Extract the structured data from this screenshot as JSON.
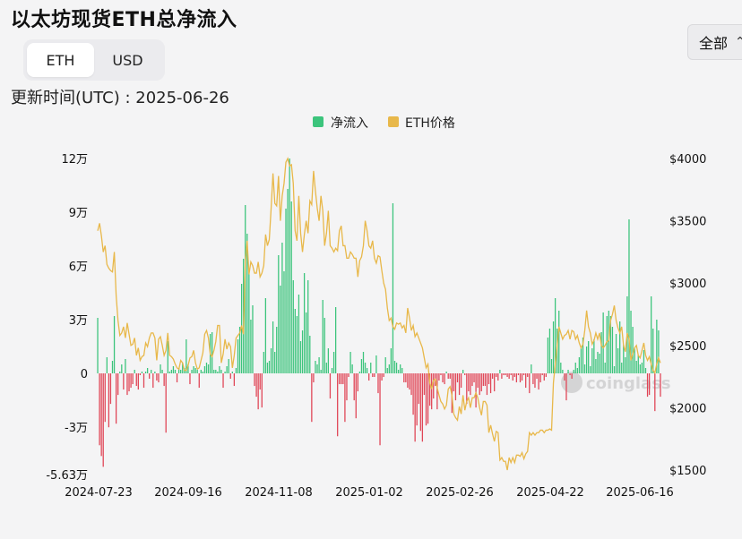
{
  "title": "以太坊现货ETH总净流入",
  "range_select": {
    "label": "全部",
    "icon": "chevron-updown-icon"
  },
  "unit_toggle": {
    "options": [
      "ETH",
      "USD"
    ],
    "selected": "ETH"
  },
  "updated_text": "更新时间(UTC) : 2025-06-26",
  "watermark": "coinglass",
  "colors": {
    "inflow": "#3cc47c",
    "outflow": "#e04556",
    "price": "#e8b84a"
  },
  "chart_data": {
    "type": "bar",
    "legend": [
      {
        "name": "净流入",
        "color": "#3cc47c"
      },
      {
        "name": "ETH价格",
        "color": "#e8b84a"
      }
    ],
    "legend_position": "top-center",
    "y_left": {
      "ticks": [
        120000,
        90000,
        60000,
        30000,
        0,
        -30000,
        -56300
      ],
      "tick_labels": [
        "12万",
        "9万",
        "6万",
        "3万",
        "0",
        "-3万",
        "-5.63万"
      ],
      "range": [
        -56300,
        120000
      ]
    },
    "y_right": {
      "ticks": [
        4000,
        3500,
        3000,
        2500,
        2000,
        1500
      ],
      "tick_labels": [
        "$4000",
        "$3500",
        "$3000",
        "$2500",
        "$2000",
        "$1500"
      ],
      "range": [
        1450,
        4000
      ]
    },
    "x_tick_labels": [
      "2024-07-23",
      "2024-09-16",
      "2024-11-08",
      "2025-01-02",
      "2025-02-26",
      "2025-04-22",
      "2025-06-16"
    ],
    "series": [
      {
        "name": "净流入",
        "unit": "ETH",
        "values": [
          31000,
          -40000,
          -46000,
          -52000,
          -27000,
          9000,
          -30000,
          -17000,
          7000,
          32000,
          -28000,
          -12000,
          1000,
          5000,
          -9000,
          8000,
          -12000,
          -10000,
          -8000,
          -6000,
          2000,
          -7000,
          -9000,
          -1000,
          1000,
          -8000,
          1000,
          3000,
          -3000,
          2000,
          -8000,
          1000,
          -4000,
          -5000,
          5000,
          2000,
          -7000,
          -33000,
          18000,
          1000,
          2000,
          4000,
          2000,
          -5000,
          3000,
          2000,
          6000,
          3000,
          19000,
          5000,
          -6000,
          2000,
          4000,
          3000,
          2000,
          -8000,
          2000,
          1000,
          4000,
          6000,
          5000,
          22000,
          23000,
          2000,
          2000,
          1000,
          4000,
          2000,
          -8000,
          1000,
          4000,
          8000,
          -3000,
          1000,
          -7000,
          3000,
          19000,
          26000,
          50000,
          64000,
          94000,
          78000,
          58000,
          30000,
          38000,
          -7000,
          -13000,
          -20000,
          -9000,
          -19000,
          12000,
          42000,
          6000,
          7000,
          14000,
          29000,
          12000,
          26000,
          66000,
          49000,
          73000,
          57000,
          92000,
          103000,
          120000,
          96000,
          52000,
          36000,
          32000,
          44000,
          18000,
          24000,
          56000,
          34000,
          52000,
          21000,
          -27000,
          -5000,
          7000,
          5000,
          9000,
          2000,
          41000,
          31000,
          6000,
          14000,
          -14000,
          3000,
          12000,
          37000,
          -35000,
          -6000,
          -6000,
          -6000,
          -27000,
          -15000,
          -2000,
          12000,
          5000,
          -15000,
          -25000,
          -10000,
          1000,
          8000,
          12000,
          6000,
          3000,
          -4000,
          6000,
          -2000,
          -2000,
          10000,
          -11000,
          -40000,
          -4000,
          -2000,
          9000,
          3000,
          5000,
          14000,
          95000,
          7000,
          6000,
          2000,
          5000,
          3000,
          -5000,
          -5000,
          -8000,
          -9000,
          -12000,
          -23000,
          -38000,
          -29000,
          -17000,
          -32000,
          -38000,
          -12000,
          -29000,
          -28000,
          -18000,
          -20000,
          -14000,
          -7000,
          -20000,
          -4000,
          -1000,
          -5000,
          -6000,
          1000,
          -3000,
          -3000,
          -22000,
          -10000,
          -15000,
          -5000,
          -12000,
          -8000,
          2000,
          -1000,
          -17000,
          -10000,
          -12000,
          -7000,
          -5000,
          -19000,
          -8000,
          -12000,
          -10000,
          -7000,
          -7000,
          -12000,
          -6000,
          -11000,
          -3000,
          -10000,
          -2000,
          -4000,
          2000,
          -3000,
          -1000,
          -1000,
          -2000,
          -3000,
          -1000,
          -4000,
          -2000,
          -5000,
          -1000,
          -5000,
          -4000,
          -1000,
          -8000,
          -2000,
          -11000,
          5000,
          -6000,
          -8000,
          -3000,
          -9000,
          -5000,
          -1000,
          -4000,
          -2000,
          20000,
          25000,
          8000,
          29000,
          42000,
          25000,
          35000,
          6000,
          2000,
          -4000,
          -15000,
          2000,
          -1000,
          -3000,
          2000,
          6000,
          3000,
          9000,
          14000,
          20000,
          5000,
          15000,
          18000,
          4000,
          14000,
          19000,
          8000,
          12000,
          11000,
          23000,
          34000,
          6000,
          32000,
          35000,
          32000,
          26000,
          4000,
          22000,
          14000,
          29000,
          6000,
          16000,
          9000,
          43000,
          86000,
          35000,
          26000,
          14000,
          7000,
          10000,
          5000,
          6000,
          13000,
          3000,
          -13000,
          -12000,
          43000,
          25000,
          -21000,
          30000,
          24000,
          -13000
        ]
      },
      {
        "name": "ETH价格",
        "unit": "USD",
        "values": [
          3420,
          3480,
          3380,
          3250,
          3300,
          3150,
          3120,
          3100,
          3090,
          3250,
          2900,
          2700,
          2580,
          2600,
          2650,
          2560,
          2680,
          2590,
          2500,
          2510,
          2560,
          2420,
          2480,
          2380,
          2410,
          2420,
          2520,
          2490,
          2560,
          2600,
          2600,
          2560,
          2380,
          2550,
          2570,
          2500,
          2420,
          2460,
          2600,
          2420,
          2410,
          2390,
          2350,
          2320,
          2310,
          2380,
          2360,
          2300,
          2300,
          2340,
          2400,
          2410,
          2460,
          2360,
          2310,
          2320,
          2380,
          2440,
          2590,
          2620,
          2560,
          2430,
          2410,
          2460,
          2530,
          2660,
          2660,
          2360,
          2430,
          2550,
          2470,
          2520,
          2490,
          2320,
          2420,
          2560,
          2580,
          2600,
          2660,
          2590,
          3170,
          3340,
          3070,
          3170,
          3140,
          3080,
          3080,
          3170,
          3050,
          3080,
          3140,
          3390,
          3300,
          3350,
          3600,
          3880,
          3640,
          3620,
          3860,
          3500,
          3700,
          3800,
          3970,
          4000,
          3940,
          3950,
          3800,
          3420,
          3340,
          3700,
          3400,
          3250,
          3390,
          3500,
          3400,
          3660,
          3630,
          3900,
          3740,
          3600,
          3500,
          3700,
          3580,
          3300,
          3400,
          3580,
          3300,
          3280,
          3250,
          3280,
          3260,
          3420,
          3460,
          3300,
          3300,
          3200,
          3200,
          3250,
          3230,
          3200,
          3200,
          3050,
          3180,
          3210,
          3300,
          3500,
          3420,
          3300,
          3280,
          3340,
          3200,
          3160,
          3220,
          3210,
          3100,
          3000,
          2950,
          2800,
          2700,
          2720,
          2650,
          2630,
          2680,
          2670,
          2680,
          2640,
          2660,
          2600,
          2800,
          2720,
          2620,
          2660,
          2570,
          2600,
          2560,
          2520,
          2480,
          2400,
          2320,
          2350,
          2200,
          2150,
          2220,
          2230,
          2160,
          2100,
          2050,
          2030,
          1990,
          2020,
          2150,
          2170,
          2100,
          1950,
          1920,
          1900,
          2010,
          1950,
          2100,
          1980,
          2050,
          2080,
          2000,
          2080,
          2080,
          2120,
          2080,
          2000,
          1940,
          2050,
          2050,
          2020,
          1800,
          1860,
          1790,
          1730,
          1810,
          1800,
          1580,
          1600,
          1570,
          1570,
          1500,
          1600,
          1560,
          1600,
          1560,
          1620,
          1620,
          1610,
          1640,
          1590,
          1630,
          1650,
          1800,
          1780,
          1800,
          1780,
          1800,
          1800,
          1820,
          1820,
          1800,
          1820,
          1820,
          1830,
          1820,
          2200,
          2350,
          2500,
          2650,
          2600,
          2550,
          2580,
          2590,
          2620,
          2550,
          2620,
          2610,
          2550,
          2580,
          2520,
          2480,
          2510,
          2620,
          2780,
          2650,
          2600,
          2510,
          2540,
          2600,
          2550,
          2600,
          2500,
          2480,
          2500,
          2530,
          2540,
          2700,
          2750,
          2820,
          2700,
          2640,
          2600,
          2650,
          2500,
          2450,
          2600,
          2550,
          2380,
          2430,
          2480,
          2500,
          2420,
          2400,
          2460,
          2520,
          2420,
          2380,
          2410,
          2350,
          2300,
          2280,
          2350,
          2400,
          2360
        ]
      }
    ]
  }
}
